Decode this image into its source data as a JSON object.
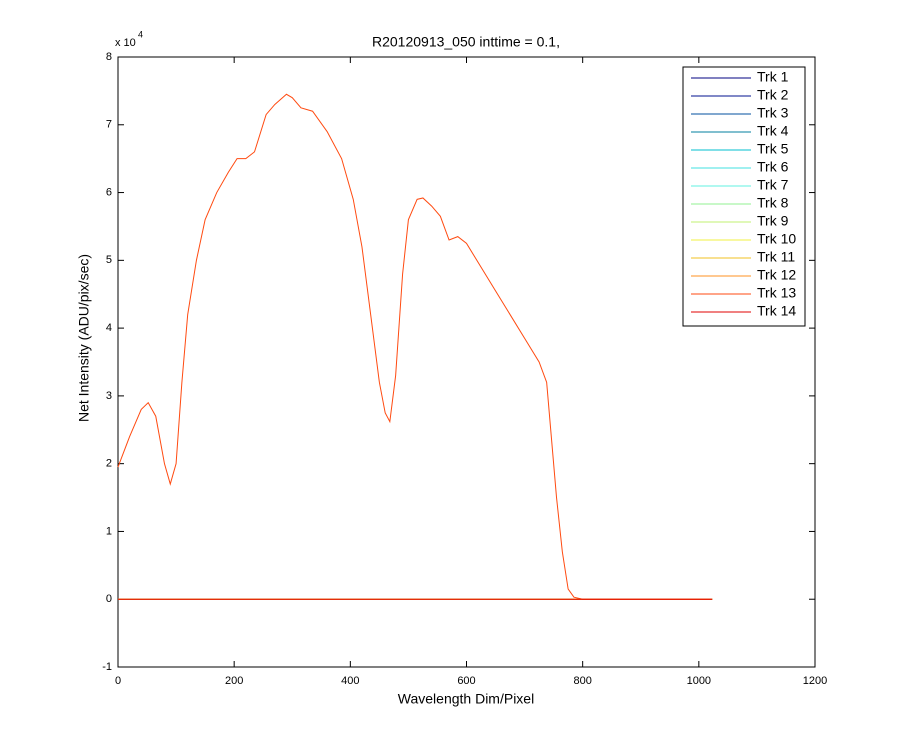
{
  "chart_data": {
    "type": "line",
    "title": "R20120913_050 inttime = 0.1,",
    "x_label": "Wavelength Dim/Pixel",
    "y_label": "Net Intensity (ADU/pix/sec)",
    "y_scale_base": "x 10",
    "y_scale_exponent": "4",
    "xlim": [
      0,
      1200
    ],
    "xticks": [
      0,
      200,
      400,
      600,
      800,
      1000,
      1200
    ],
    "ylim": [
      -1,
      8
    ],
    "yticks": [
      -1,
      0,
      1,
      2,
      3,
      4,
      5,
      6,
      7,
      8
    ],
    "legend": "upper-right",
    "series": [
      {
        "name": "Trk 1",
        "color": "#000080",
        "x": [
          0,
          1023
        ],
        "values": [
          0,
          0
        ]
      },
      {
        "name": "Trk 2",
        "color": "#00108f",
        "x": [
          0,
          1023
        ],
        "values": [
          0,
          0
        ]
      },
      {
        "name": "Trk 3",
        "color": "#004f9f",
        "x": [
          0,
          1023
        ],
        "values": [
          0,
          0
        ]
      },
      {
        "name": "Trk 4",
        "color": "#007f9f",
        "x": [
          0,
          1023
        ],
        "values": [
          0,
          0
        ]
      },
      {
        "name": "Trk 5",
        "color": "#00bfcf",
        "x": [
          0,
          1023
        ],
        "values": [
          0,
          0
        ]
      },
      {
        "name": "Trk 6",
        "color": "#40e0e0",
        "x": [
          0,
          1023
        ],
        "values": [
          0,
          0
        ]
      },
      {
        "name": "Trk 7",
        "color": "#60f0e0",
        "x": [
          0,
          1023
        ],
        "values": [
          0,
          0
        ]
      },
      {
        "name": "Trk 8",
        "color": "#90f090",
        "x": [
          0,
          1023
        ],
        "values": [
          0,
          0
        ]
      },
      {
        "name": "Trk 9",
        "color": "#c0f070",
        "x": [
          0,
          1023
        ],
        "values": [
          0,
          0
        ]
      },
      {
        "name": "Trk 10",
        "color": "#f0f040",
        "x": [
          0,
          1023
        ],
        "values": [
          0,
          0
        ]
      },
      {
        "name": "Trk 11",
        "color": "#f0c020",
        "x": [
          0,
          1023
        ],
        "values": [
          0,
          0
        ]
      },
      {
        "name": "Trk 12",
        "color": "#ff9020",
        "x": [
          0,
          1023
        ],
        "values": [
          0,
          0
        ]
      },
      {
        "name": "Trk 13",
        "color": "#ff4a10",
        "x": [
          0,
          20,
          40,
          52,
          65,
          80,
          90,
          100,
          110,
          120,
          135,
          150,
          170,
          190,
          205,
          220,
          235,
          255,
          270,
          290,
          300,
          315,
          335,
          360,
          385,
          405,
          420,
          435,
          450,
          460,
          468,
          478,
          490,
          500,
          515,
          525,
          540,
          555,
          570,
          585,
          600,
          625,
          650,
          675,
          700,
          725,
          738,
          745,
          755,
          765,
          775,
          785,
          800,
          1023
        ],
        "values": [
          1.95,
          2.4,
          2.8,
          2.9,
          2.7,
          2.0,
          1.7,
          2.0,
          3.2,
          4.2,
          5.0,
          5.6,
          6.0,
          6.3,
          6.5,
          6.5,
          6.6,
          7.15,
          7.3,
          7.45,
          7.4,
          7.25,
          7.2,
          6.9,
          6.5,
          5.9,
          5.2,
          4.2,
          3.2,
          2.75,
          2.62,
          3.3,
          4.8,
          5.6,
          5.9,
          5.92,
          5.8,
          5.65,
          5.3,
          5.35,
          5.25,
          4.9,
          4.55,
          4.2,
          3.85,
          3.5,
          3.2,
          2.5,
          1.5,
          0.7,
          0.15,
          0.03,
          0,
          0
        ]
      },
      {
        "name": "Trk 14",
        "color": "#e00000",
        "x": [
          0,
          1023
        ],
        "values": [
          0,
          0
        ]
      }
    ]
  }
}
